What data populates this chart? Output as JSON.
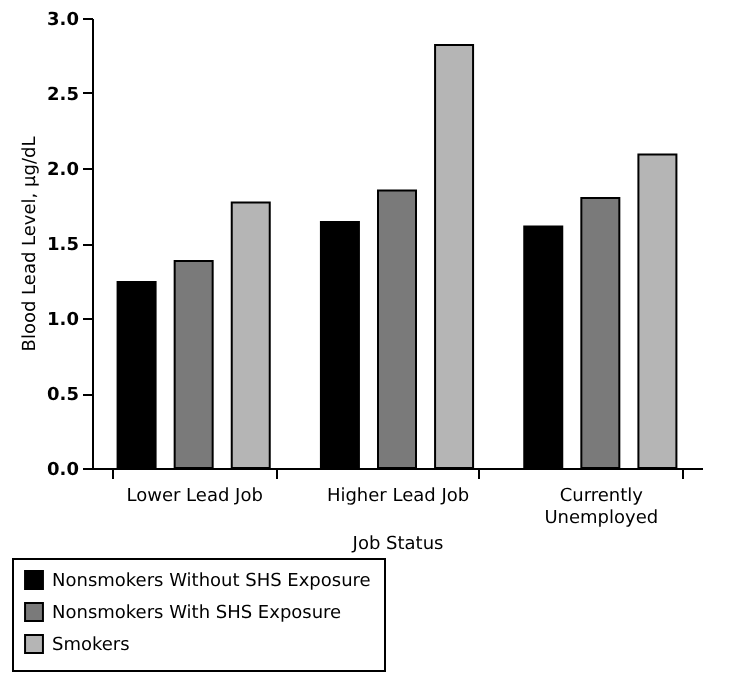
{
  "chart_data": {
    "type": "bar",
    "xlabel": "Job Status",
    "ylabel": "Blood Lead Level, µg/dL",
    "categories": [
      "Lower Lead Job",
      "Higher Lead Job",
      "Currently Unemployed"
    ],
    "series": [
      {
        "name": "Nonsmokers Without SHS Exposure",
        "color": "#000000",
        "values": [
          1.24,
          1.64,
          1.61
        ]
      },
      {
        "name": "Nonsmokers With SHS Exposure",
        "color": "#7a7a7a",
        "values": [
          1.38,
          1.85,
          1.8
        ]
      },
      {
        "name": "Smokers",
        "color": "#b5b5b5",
        "values": [
          1.77,
          2.82,
          2.09
        ]
      }
    ],
    "ylim": [
      0,
      3.0
    ],
    "yticks": [
      {
        "value": 0,
        "label": "0.0"
      },
      {
        "value": 0.5,
        "label": "0.5"
      },
      {
        "value": 1,
        "label": "1.0"
      },
      {
        "value": 1.5,
        "label": "1.5"
      },
      {
        "value": 2,
        "label": "2.0"
      },
      {
        "value": 2.5,
        "label": "2.5"
      },
      {
        "value": 3,
        "label": "3.0"
      }
    ],
    "grid": false,
    "legend": "bottom left"
  }
}
